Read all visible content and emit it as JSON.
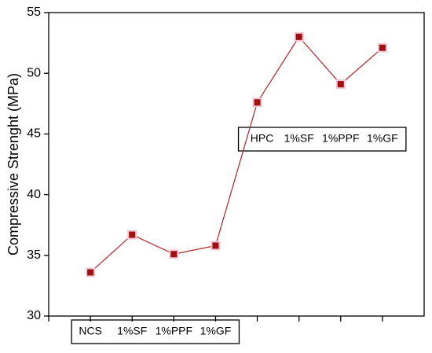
{
  "chart_data": {
    "type": "line",
    "y_label": "Compressive Strenght (MPa)",
    "categories": [
      "NCS",
      "1%SF",
      "1%PPF",
      "1%GF",
      "HPC",
      "1%SF",
      "1%PPF",
      "1%GF"
    ],
    "series": [
      {
        "name": "Compressive Strenght",
        "color": "#b22222",
        "marker_color": "#a01010",
        "values": [
          33.6,
          36.7,
          35.1,
          35.8,
          47.6,
          53.0,
          49.1,
          52.1
        ]
      }
    ],
    "ylim": [
      30,
      55
    ],
    "yticks": [
      30,
      35,
      40,
      45,
      50,
      55
    ]
  }
}
